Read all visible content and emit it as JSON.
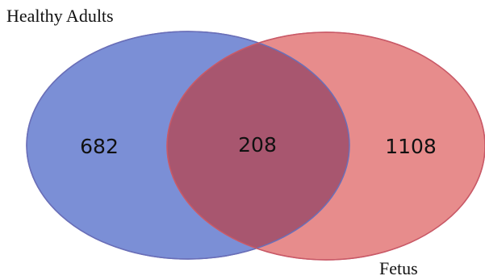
{
  "diagram": {
    "type": "venn",
    "sets": [
      {
        "label": "Healthy Adults",
        "color": "#7b8fd6",
        "stroke": "#6a6fb8"
      },
      {
        "label": "Fetus",
        "color": "#e78c8c",
        "stroke": "#d9646b"
      }
    ],
    "counts": {
      "left_only": "682",
      "intersection": "208",
      "right_only": "1108"
    },
    "overlap_color": "#a8566f"
  }
}
